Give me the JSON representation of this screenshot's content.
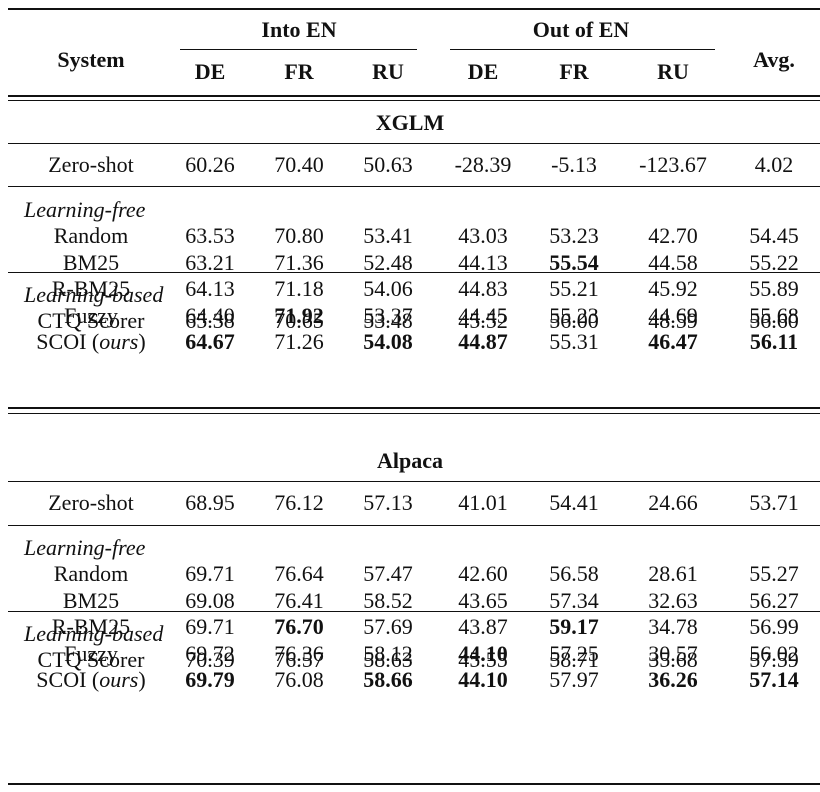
{
  "header": {
    "system": "System",
    "into_en": "Into EN",
    "out_of_en": "Out of EN",
    "avg": "Avg.",
    "langs": [
      "DE",
      "FR",
      "RU",
      "DE",
      "FR",
      "RU"
    ]
  },
  "sections": [
    {
      "title": "XGLM",
      "zero_shot": {
        "label": "Zero-shot",
        "values": [
          "60.26",
          "70.40",
          "50.63",
          "-28.39",
          "-5.13",
          "-123.67",
          "4.02"
        ]
      },
      "free_label": "Learning-free",
      "free_rows": [
        {
          "label": "Random",
          "values": [
            "63.53",
            "70.80",
            "53.41",
            "43.03",
            "53.23",
            "42.70",
            "54.45"
          ],
          "bold": []
        },
        {
          "label": "BM25",
          "values": [
            "63.21",
            "71.36",
            "52.48",
            "44.13",
            "55.54",
            "44.58",
            "55.22"
          ],
          "bold": [
            4
          ]
        },
        {
          "label": "R-BM25",
          "values": [
            "64.13",
            "71.18",
            "54.06",
            "44.83",
            "55.21",
            "45.92",
            "55.89"
          ],
          "bold": []
        },
        {
          "label": "Fuzzy",
          "values": [
            "64.40",
            "71.92",
            "53.37",
            "44.45",
            "55.23",
            "44.69",
            "55.68"
          ],
          "bold": [
            1
          ]
        },
        {
          "label": "SCOI",
          "suffix": "ours",
          "values": [
            "64.67",
            "71.26",
            "54.08",
            "44.87",
            "55.31",
            "46.47",
            "56.11"
          ],
          "bold": [
            0,
            2,
            3,
            5,
            6
          ]
        }
      ],
      "based_label": "Learning-based",
      "based_rows": [
        {
          "label": "CTQ Scorer",
          "values": [
            "65.38",
            "70.65",
            "53.48",
            "45.52",
            "56.00",
            "48.59",
            "56.60"
          ],
          "bold": []
        }
      ]
    },
    {
      "title": "Alpaca",
      "zero_shot": {
        "label": "Zero-shot",
        "values": [
          "68.95",
          "76.12",
          "57.13",
          "41.01",
          "54.41",
          "24.66",
          "53.71"
        ]
      },
      "free_label": "Learning-free",
      "free_rows": [
        {
          "label": "Random",
          "values": [
            "69.71",
            "76.64",
            "57.47",
            "42.60",
            "56.58",
            "28.61",
            "55.27"
          ],
          "bold": []
        },
        {
          "label": "BM25",
          "values": [
            "69.08",
            "76.41",
            "58.52",
            "43.65",
            "57.34",
            "32.63",
            "56.27"
          ],
          "bold": []
        },
        {
          "label": "R-BM25",
          "values": [
            "69.71",
            "76.70",
            "57.69",
            "43.87",
            "59.17",
            "34.78",
            "56.99"
          ],
          "bold": [
            1,
            4
          ]
        },
        {
          "label": "Fuzzy",
          "values": [
            "69.72",
            "76.36",
            "58.12",
            "44.10",
            "57.25",
            "30.57",
            "56.02"
          ],
          "bold": [
            3
          ]
        },
        {
          "label": "SCOI",
          "suffix": "ours",
          "values": [
            "69.79",
            "76.08",
            "58.66",
            "44.10",
            "57.97",
            "36.26",
            "57.14"
          ],
          "bold": [
            0,
            2,
            3,
            5,
            6
          ]
        }
      ],
      "based_label": "Learning-based",
      "based_rows": [
        {
          "label": "CTQ Scorer",
          "values": [
            "70.39",
            "76.57",
            "58.63",
            "45.55",
            "58.71",
            "35.68",
            "57.59"
          ],
          "bold": []
        }
      ]
    }
  ]
}
